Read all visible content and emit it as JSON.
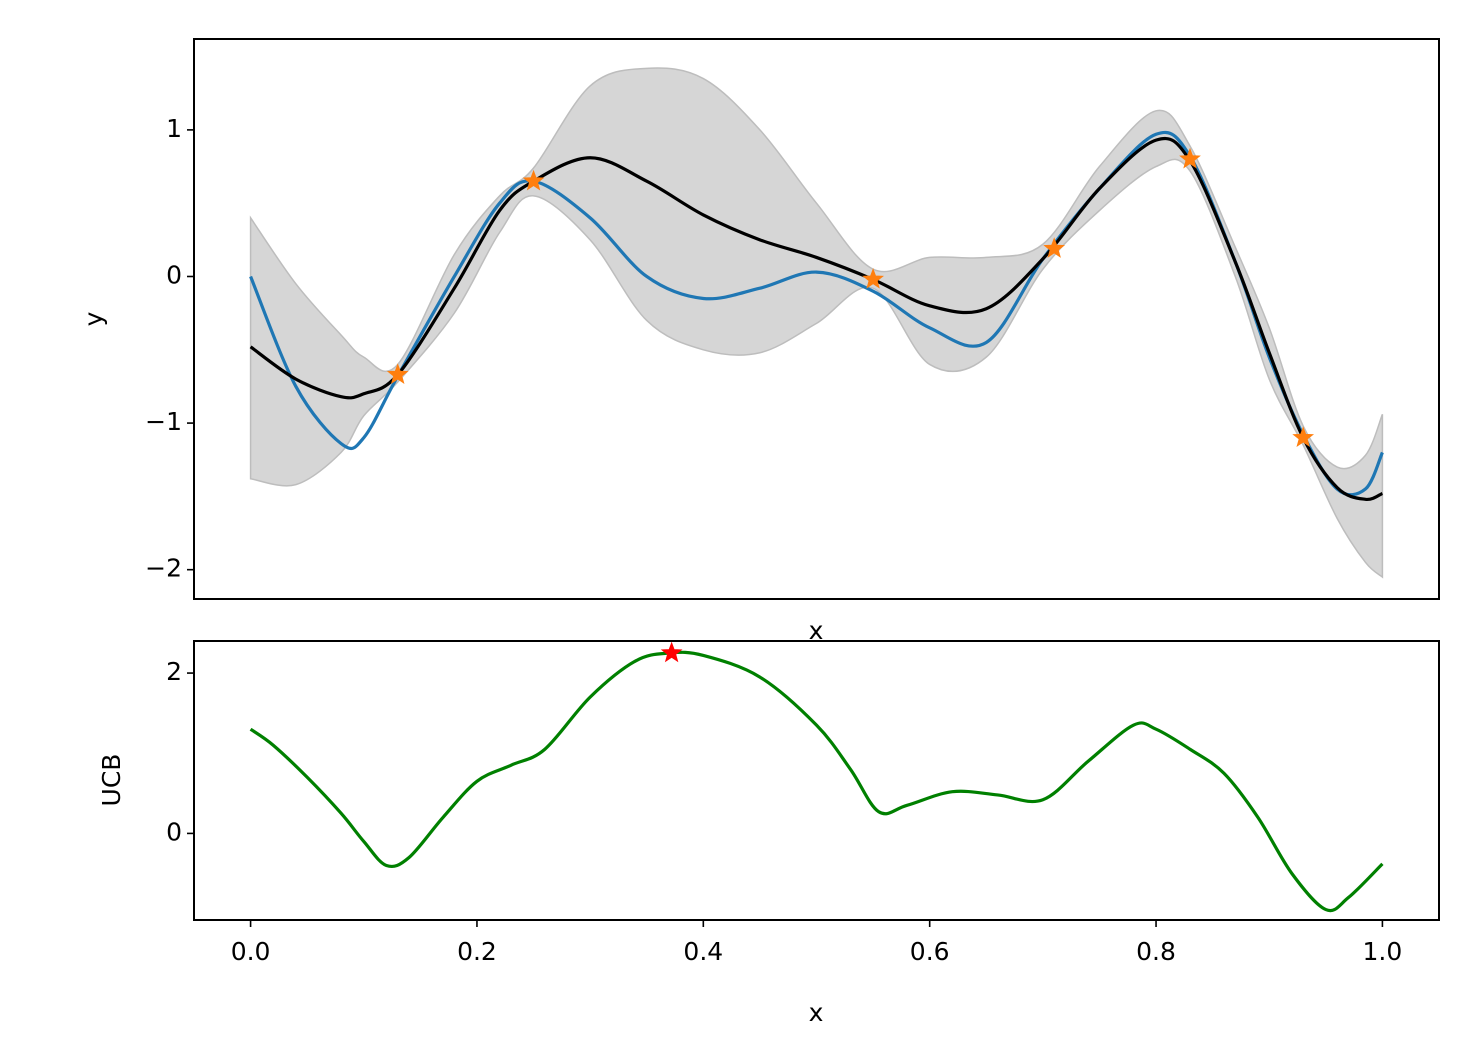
{
  "chart_data": [
    {
      "type": "line",
      "xlabel": "x",
      "ylabel": "y",
      "xlim": [
        -0.05,
        1.05
      ],
      "ylim": [
        -2.2,
        1.62
      ],
      "yticks": [
        -2,
        -1,
        0,
        1
      ],
      "ytick_labels": [
        "−2",
        "−1",
        "0",
        "1"
      ],
      "colors": {
        "true": "#1f77b4",
        "mean": "#000000",
        "band": "#d6d6d6",
        "band_edge": "#bdbdbd",
        "obs": "#ff7f0e"
      },
      "series": [
        {
          "role": "true-function",
          "x": [
            0.0,
            0.04,
            0.08,
            0.1,
            0.13,
            0.18,
            0.22,
            0.25,
            0.3,
            0.35,
            0.4,
            0.45,
            0.5,
            0.55,
            0.6,
            0.65,
            0.7,
            0.75,
            0.8,
            0.83,
            0.87,
            0.9,
            0.93,
            0.96,
            0.985,
            1.0
          ],
          "y": [
            0.0,
            -0.75,
            -1.14,
            -1.1,
            -0.68,
            0.0,
            0.5,
            0.65,
            0.4,
            0.0,
            -0.15,
            -0.08,
            0.03,
            -0.1,
            -0.35,
            -0.45,
            0.12,
            0.6,
            0.97,
            0.82,
            0.1,
            -0.55,
            -1.08,
            -1.45,
            -1.45,
            -1.2
          ]
        },
        {
          "role": "posterior-mean",
          "x": [
            0.0,
            0.04,
            0.08,
            0.1,
            0.13,
            0.18,
            0.22,
            0.25,
            0.3,
            0.35,
            0.4,
            0.45,
            0.5,
            0.55,
            0.6,
            0.65,
            0.7,
            0.75,
            0.8,
            0.83,
            0.87,
            0.9,
            0.93,
            0.96,
            0.985,
            1.0
          ],
          "y": [
            -0.48,
            -0.7,
            -0.82,
            -0.8,
            -0.67,
            -0.08,
            0.45,
            0.65,
            0.81,
            0.65,
            0.42,
            0.25,
            0.13,
            -0.02,
            -0.2,
            -0.22,
            0.12,
            0.6,
            0.93,
            0.79,
            0.1,
            -0.52,
            -1.1,
            -1.44,
            -1.52,
            -1.48
          ]
        }
      ],
      "band": {
        "x": [
          0.0,
          0.04,
          0.08,
          0.1,
          0.13,
          0.18,
          0.22,
          0.25,
          0.3,
          0.35,
          0.4,
          0.45,
          0.5,
          0.55,
          0.6,
          0.65,
          0.7,
          0.75,
          0.8,
          0.83,
          0.87,
          0.9,
          0.93,
          0.96,
          0.985,
          1.0
        ],
        "lower": [
          -1.38,
          -1.42,
          -1.2,
          -0.95,
          -0.72,
          -0.25,
          0.3,
          0.55,
          0.25,
          -0.3,
          -0.5,
          -0.52,
          -0.32,
          -0.08,
          -0.6,
          -0.55,
          0.05,
          0.45,
          0.75,
          0.72,
          0.0,
          -0.7,
          -1.15,
          -1.65,
          -1.95,
          -2.05
        ],
        "upper": [
          0.4,
          -0.05,
          -0.4,
          -0.55,
          -0.6,
          0.15,
          0.55,
          0.74,
          1.3,
          1.42,
          1.35,
          1.0,
          0.5,
          0.05,
          0.13,
          0.13,
          0.22,
          0.75,
          1.13,
          0.89,
          0.2,
          -0.35,
          -1.02,
          -1.3,
          -1.22,
          -0.94
        ]
      },
      "observations": {
        "x": [
          0.13,
          0.25,
          0.55,
          0.71,
          0.83,
          0.93
        ],
        "y": [
          -0.67,
          0.65,
          -0.02,
          0.19,
          0.8,
          -1.1
        ]
      }
    },
    {
      "type": "line",
      "xlabel": "x",
      "ylabel": "UCB",
      "xlim": [
        -0.05,
        1.05
      ],
      "ylim": [
        -1.08,
        2.4
      ],
      "yticks": [
        0,
        2
      ],
      "ytick_labels": [
        "0",
        "2"
      ],
      "xticks": [
        0.0,
        0.2,
        0.4,
        0.6,
        0.8,
        1.0
      ],
      "xtick_labels": [
        "0.0",
        "0.2",
        "0.4",
        "0.6",
        "0.8",
        "1.0"
      ],
      "colors": {
        "ucb": "#008000",
        "max": "#ff0000"
      },
      "series": [
        {
          "role": "ucb",
          "x": [
            0.0,
            0.02,
            0.05,
            0.08,
            0.1,
            0.12,
            0.14,
            0.17,
            0.2,
            0.23,
            0.26,
            0.3,
            0.34,
            0.37,
            0.4,
            0.45,
            0.5,
            0.53,
            0.555,
            0.58,
            0.62,
            0.66,
            0.7,
            0.74,
            0.78,
            0.8,
            0.83,
            0.86,
            0.89,
            0.92,
            0.95,
            0.97,
            1.0
          ],
          "y": [
            1.3,
            1.1,
            0.7,
            0.25,
            -0.1,
            -0.4,
            -0.3,
            0.2,
            0.65,
            0.85,
            1.05,
            1.7,
            2.15,
            2.25,
            2.22,
            1.95,
            1.35,
            0.8,
            0.27,
            0.35,
            0.52,
            0.48,
            0.42,
            0.9,
            1.35,
            1.3,
            1.05,
            0.75,
            0.2,
            -0.5,
            -0.95,
            -0.8,
            -0.38
          ]
        }
      ],
      "max_point": {
        "x": 0.372,
        "y": 2.25
      }
    }
  ]
}
